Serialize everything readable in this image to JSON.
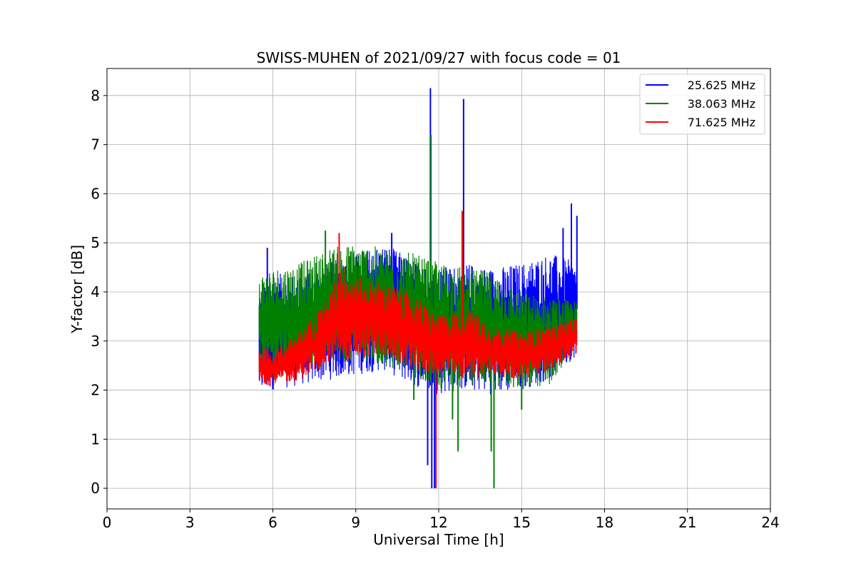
{
  "chart_data": {
    "type": "line",
    "title": "SWISS-MUHEN of 2021/09/27 with focus code = 01",
    "xlabel": "Universal Time [h]",
    "ylabel": "Y-factor [dB]",
    "xlim": [
      0,
      24
    ],
    "ylim": [
      -0.42,
      8.55
    ],
    "xticks": [
      0,
      3,
      6,
      9,
      12,
      15,
      18,
      21,
      24
    ],
    "yticks": [
      0,
      1,
      2,
      3,
      4,
      5,
      6,
      7,
      8
    ],
    "grid": true,
    "legend_position": "top-right",
    "series": [
      {
        "name": "25.625 MHz",
        "color": "#0000ff",
        "x_range": [
          5.5,
          17.0
        ],
        "baseline_points": [
          {
            "x": 5.5,
            "low": 1.9,
            "high": 4.0
          },
          {
            "x": 6.0,
            "low": 2.0,
            "high": 4.4
          },
          {
            "x": 7.0,
            "low": 2.1,
            "high": 4.3
          },
          {
            "x": 8.0,
            "low": 2.2,
            "high": 4.6
          },
          {
            "x": 9.0,
            "low": 2.3,
            "high": 4.8
          },
          {
            "x": 10.0,
            "low": 2.4,
            "high": 5.0
          },
          {
            "x": 11.0,
            "low": 2.1,
            "high": 4.7
          },
          {
            "x": 12.0,
            "low": 1.9,
            "high": 4.5
          },
          {
            "x": 13.0,
            "low": 2.0,
            "high": 4.6
          },
          {
            "x": 14.0,
            "low": 1.9,
            "high": 4.5
          },
          {
            "x": 15.0,
            "low": 2.0,
            "high": 4.6
          },
          {
            "x": 16.0,
            "low": 2.2,
            "high": 4.8
          },
          {
            "x": 17.0,
            "low": 2.7,
            "high": 4.6
          }
        ],
        "spikes": [
          {
            "x": 5.8,
            "y": 4.9
          },
          {
            "x": 10.3,
            "y": 5.2
          },
          {
            "x": 11.7,
            "y": 8.15
          },
          {
            "x": 12.9,
            "y": 7.93
          },
          {
            "x": 16.5,
            "y": 5.3
          },
          {
            "x": 16.8,
            "y": 5.8
          },
          {
            "x": 17.0,
            "y": 5.55
          }
        ],
        "dips": [
          {
            "x": 11.6,
            "y": 0.47
          },
          {
            "x": 11.75,
            "y": 0.0
          },
          {
            "x": 11.85,
            "y": 0.0
          }
        ]
      },
      {
        "name": "38.063 MHz",
        "color": "#008000",
        "x_range": [
          5.5,
          17.0
        ],
        "baseline_points": [
          {
            "x": 5.5,
            "low": 2.3,
            "high": 4.4
          },
          {
            "x": 6.0,
            "low": 2.2,
            "high": 4.5
          },
          {
            "x": 7.0,
            "low": 2.3,
            "high": 4.6
          },
          {
            "x": 8.0,
            "low": 2.5,
            "high": 4.9
          },
          {
            "x": 9.0,
            "low": 2.6,
            "high": 5.0
          },
          {
            "x": 10.0,
            "low": 2.5,
            "high": 4.9
          },
          {
            "x": 11.0,
            "low": 2.3,
            "high": 4.8
          },
          {
            "x": 12.0,
            "low": 2.0,
            "high": 4.6
          },
          {
            "x": 13.0,
            "low": 2.1,
            "high": 4.5
          },
          {
            "x": 14.0,
            "low": 2.1,
            "high": 4.4
          },
          {
            "x": 15.0,
            "low": 2.0,
            "high": 4.0
          },
          {
            "x": 16.0,
            "low": 2.1,
            "high": 3.9
          },
          {
            "x": 17.0,
            "low": 2.9,
            "high": 3.8
          }
        ],
        "spikes": [
          {
            "x": 7.9,
            "y": 5.25
          },
          {
            "x": 11.72,
            "y": 7.2
          }
        ],
        "dips": [
          {
            "x": 11.1,
            "y": 1.8
          },
          {
            "x": 12.5,
            "y": 1.4
          },
          {
            "x": 12.7,
            "y": 0.75
          },
          {
            "x": 13.9,
            "y": 0.75
          },
          {
            "x": 14.0,
            "y": 0.0
          },
          {
            "x": 15.0,
            "y": 1.6
          }
        ]
      },
      {
        "name": "71.625 MHz",
        "color": "#ff0000",
        "x_range": [
          5.5,
          17.0
        ],
        "baseline_points": [
          {
            "x": 5.5,
            "low": 2.1,
            "high": 2.9
          },
          {
            "x": 6.0,
            "low": 2.1,
            "high": 2.8
          },
          {
            "x": 7.0,
            "low": 2.2,
            "high": 3.2
          },
          {
            "x": 8.0,
            "low": 2.5,
            "high": 3.9
          },
          {
            "x": 8.5,
            "low": 2.6,
            "high": 4.6
          },
          {
            "x": 9.0,
            "low": 2.6,
            "high": 4.3
          },
          {
            "x": 10.0,
            "low": 2.7,
            "high": 4.2
          },
          {
            "x": 11.0,
            "low": 2.4,
            "high": 4.0
          },
          {
            "x": 12.0,
            "low": 2.3,
            "high": 3.5
          },
          {
            "x": 13.0,
            "low": 2.2,
            "high": 3.7
          },
          {
            "x": 14.0,
            "low": 2.3,
            "high": 3.3
          },
          {
            "x": 15.0,
            "low": 2.2,
            "high": 3.2
          },
          {
            "x": 16.0,
            "low": 2.4,
            "high": 3.3
          },
          {
            "x": 17.0,
            "low": 2.7,
            "high": 3.5
          }
        ],
        "spikes": [
          {
            "x": 8.4,
            "y": 5.2
          },
          {
            "x": 12.85,
            "y": 5.65
          }
        ],
        "dips": [
          {
            "x": 11.9,
            "y": 0.0
          }
        ]
      }
    ]
  }
}
